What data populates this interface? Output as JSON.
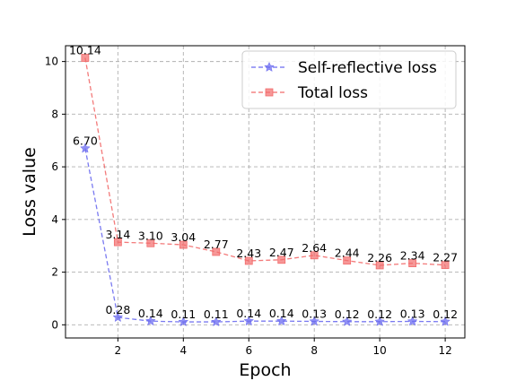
{
  "chart_data": {
    "type": "line",
    "title": "",
    "xlabel": "Epoch",
    "ylabel": "Loss value",
    "xlim": [
      0.4,
      12.6
    ],
    "ylim": [
      -0.5,
      10.6
    ],
    "xticks": [
      2,
      4,
      6,
      8,
      10,
      12
    ],
    "yticks": [
      0,
      2,
      4,
      6,
      8,
      10
    ],
    "grid": true,
    "legend_position": "top-right",
    "x": [
      1,
      2,
      3,
      4,
      5,
      6,
      7,
      8,
      9,
      10,
      11,
      12
    ],
    "series": [
      {
        "name": "Self-reflective loss",
        "color": "#6b6bf0",
        "marker": "star",
        "line_style": "dashed",
        "values": [
          6.7,
          0.28,
          0.14,
          0.11,
          0.11,
          0.14,
          0.14,
          0.13,
          0.12,
          0.12,
          0.13,
          0.12
        ],
        "labels": [
          "6.70",
          "0.28",
          "0.14",
          "0.11",
          "0.11",
          "0.14",
          "0.14",
          "0.13",
          "0.12",
          "0.12",
          "0.13",
          "0.12"
        ]
      },
      {
        "name": "Total loss",
        "color": "#f26b6b",
        "marker": "square",
        "line_style": "dashed",
        "values": [
          10.14,
          3.14,
          3.1,
          3.04,
          2.77,
          2.43,
          2.47,
          2.64,
          2.44,
          2.26,
          2.34,
          2.27
        ],
        "labels": [
          "10.14",
          "3.14",
          "3.10",
          "3.04",
          "2.77",
          "2.43",
          "2.47",
          "2.64",
          "2.44",
          "2.26",
          "2.34",
          "2.27"
        ]
      }
    ]
  }
}
